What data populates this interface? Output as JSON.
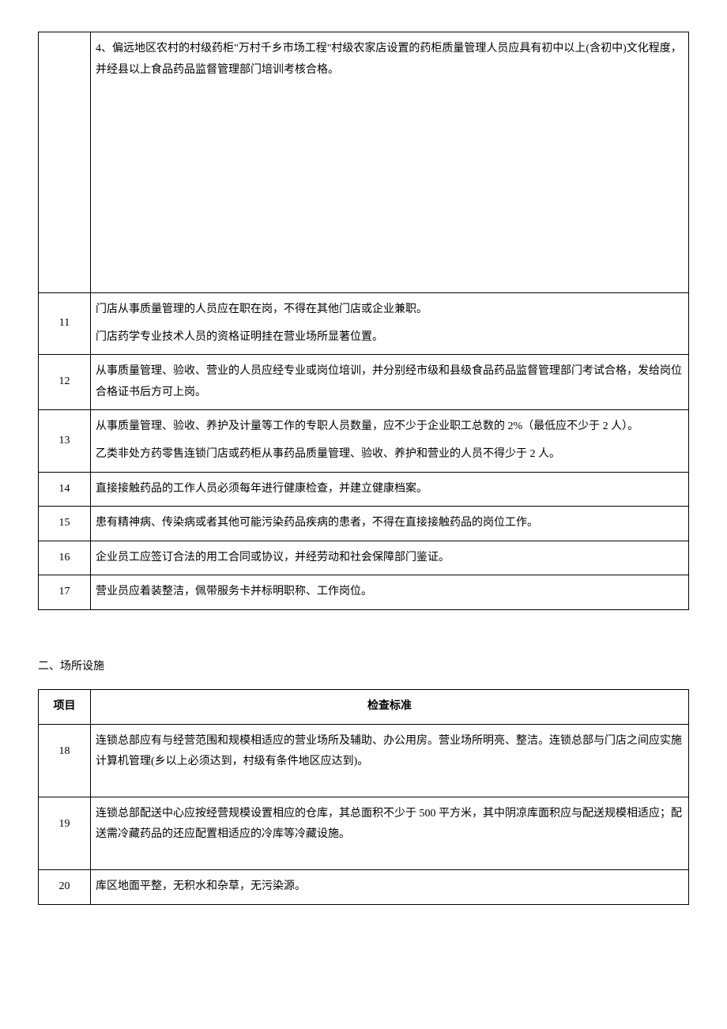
{
  "table1": {
    "rows": [
      {
        "num": "",
        "content": [
          "4、偏远地区农村的村级药柜\"万村千乡市场工程\"村级农家店设置的药柜质量管理人员应具有初中以上(含初中)文化程度，并经县以上食品药品监督管理部门培训考核合格。"
        ],
        "tall": true
      },
      {
        "num": "11",
        "content": [
          "门店从事质量管理的人员应在职在岗，不得在其他门店或企业兼职。",
          "门店药学专业技术人员的资格证明挂在营业场所显著位置。"
        ]
      },
      {
        "num": "12",
        "content": [
          "从事质量管理、验收、营业的人员应经专业或岗位培训，并分别经市级和县级食品药品监督管理部门考试合格，发给岗位合格证书后方可上岗。"
        ]
      },
      {
        "num": "13",
        "content": [
          "从事质量管理、验收、养护及计量等工作的专职人员数量，应不少于企业职工总数的 2%（最低应不少于 2 人）。",
          "乙类非处方药零售连锁门店或药柜从事药品质量管理、验收、养护和营业的人员不得少于 2 人。"
        ]
      },
      {
        "num": "14",
        "content": [
          "直接接触药品的工作人员必须每年进行健康检查，并建立健康档案。"
        ]
      },
      {
        "num": "15",
        "content": [
          "患有精神病、传染病或者其他可能污染药品疾病的患者，不得在直接接触药品的岗位工作。"
        ]
      },
      {
        "num": "16",
        "content": [
          "企业员工应签订合法的用工合同或协议，并经劳动和社会保障部门鉴证。"
        ]
      },
      {
        "num": "17",
        "content": [
          "营业员应着装整洁，佩带服务卡并标明职称、工作岗位。"
        ]
      }
    ]
  },
  "section2": {
    "heading": "二、场所设施",
    "headers": {
      "col1": "项目",
      "col2": "检查标准"
    },
    "rows": [
      {
        "num": "18",
        "content": [
          "连锁总部应有与经营范围和规模相适应的营业场所及辅助、办公用房。营业场所明亮、整洁。连锁总部与门店之间应实施计算机管理(乡以上必须达到，村级有条件地区应达到)。"
        ],
        "extraPad": true
      },
      {
        "num": "19",
        "content": [
          "连锁总部配送中心应按经营规模设置相应的仓库，其总面积不少于 500 平方米，其中阴凉库面积应与配送规模相适应；配送需冷藏药品的还应配置相适应的冷库等冷藏设施。"
        ],
        "extraPad": true
      },
      {
        "num": "20",
        "content": [
          "库区地面平整，无积水和杂草，无污染源。"
        ]
      }
    ]
  }
}
